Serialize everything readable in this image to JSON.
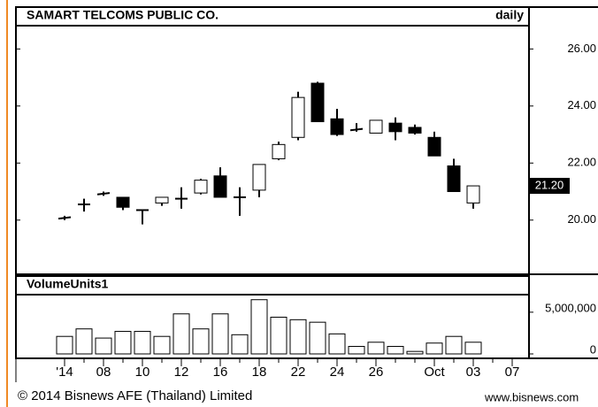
{
  "chart_data": [
    {
      "type": "candlestick",
      "title": "SAMART TELCOMS PUBLIC CO.",
      "subtitle": "daily",
      "open": [
        20.05,
        20.55,
        20.9,
        20.8,
        20.35,
        20.6,
        20.75,
        20.95,
        21.55,
        20.8,
        21.05,
        22.15,
        22.9,
        24.8,
        23.55,
        23.15,
        23.05,
        23.4,
        23.25,
        22.9,
        21.9,
        20.6,
        null,
        null
      ],
      "high": [
        20.15,
        20.75,
        21.0,
        20.8,
        20.35,
        20.8,
        21.15,
        21.45,
        21.85,
        21.15,
        21.95,
        22.75,
        24.5,
        24.85,
        23.9,
        23.4,
        23.5,
        23.6,
        23.35,
        23.1,
        22.15,
        21.2,
        null,
        null
      ],
      "low": [
        20.0,
        20.3,
        20.85,
        20.35,
        19.85,
        20.5,
        20.4,
        20.9,
        20.8,
        20.15,
        20.8,
        22.1,
        22.8,
        23.45,
        22.95,
        23.1,
        23.05,
        22.8,
        23.0,
        22.25,
        21.0,
        20.4,
        null,
        null
      ],
      "close": [
        20.1,
        20.55,
        20.95,
        20.45,
        20.35,
        20.8,
        20.75,
        21.4,
        20.8,
        20.8,
        21.95,
        22.65,
        24.3,
        23.45,
        23.0,
        23.2,
        23.5,
        23.1,
        23.05,
        22.25,
        21.0,
        21.2,
        null,
        null
      ],
      "up_color": "#ffffff",
      "down_color": "#000000",
      "ylim": [
        18.1,
        26.6
      ],
      "yticks": [
        {
          "value": 20,
          "label": "20.00"
        },
        {
          "value": 22,
          "label": "22.00"
        },
        {
          "value": 24,
          "label": "24.00"
        },
        {
          "value": 26,
          "label": "26.00"
        }
      ],
      "last_price": {
        "value": 21.2,
        "label": "21.20"
      }
    },
    {
      "type": "bar",
      "title": "VolumeUnits1",
      "categories": [
        "'14",
        null,
        "08",
        null,
        "10",
        null,
        "12",
        null,
        "16",
        null,
        "18",
        null,
        "22",
        null,
        "24",
        null,
        "26",
        null,
        null,
        "Oct",
        null,
        "03",
        null,
        "07"
      ],
      "values": [
        2100000,
        3000000,
        1900000,
        2700000,
        2700000,
        2100000,
        4800000,
        3000000,
        4800000,
        2300000,
        6500000,
        4400000,
        4100000,
        3800000,
        2400000,
        900000,
        1400000,
        900000,
        300000,
        1300000,
        2100000,
        1400000,
        null,
        null
      ],
      "color": "#ffffff",
      "ylim": [
        0,
        7000000
      ],
      "yticks": [
        0,
        {
          "value": 5000000,
          "label": "5,000,000"
        }
      ]
    }
  ],
  "footer": {
    "copyright": "© 2014 Bisnews AFE (Thailand) Limited",
    "source": "www.bisnews.com"
  }
}
